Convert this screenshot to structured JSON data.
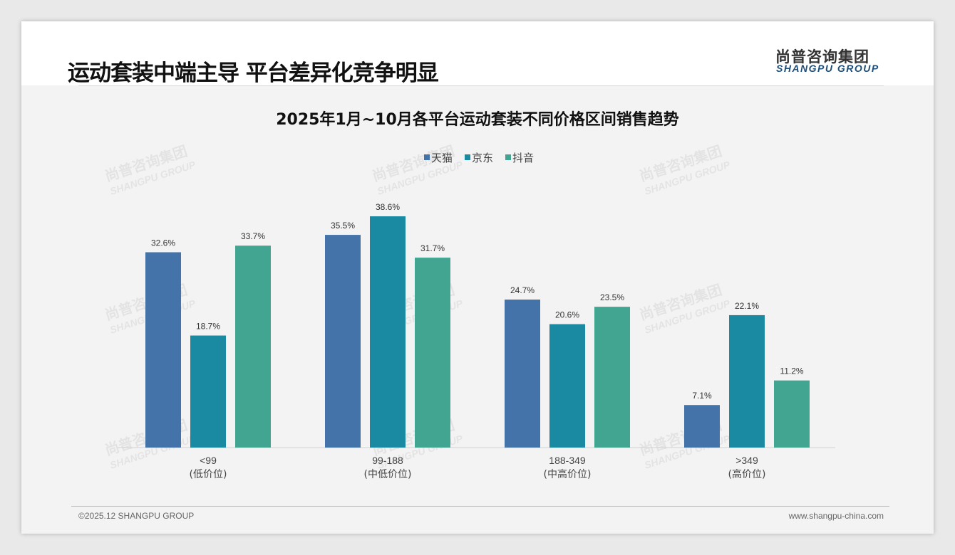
{
  "header": {
    "title": "运动套装中端主导 平台差异化竞争明显",
    "logo_cn": "尚普咨询集团",
    "logo_en": "SHANGPU GROUP"
  },
  "footer": {
    "copyright": "©2025.12 SHANGPU GROUP",
    "url": "www.shangpu-china.com"
  },
  "colors": {
    "天猫": "#4373a8",
    "京东": "#1a8aa2",
    "抖音": "#41a592"
  },
  "chart_data": {
    "type": "bar",
    "title": "2025年1月~10月各平台运动套装不同价格区间销售趋势",
    "categories": [
      [
        "<99",
        "(低价位)"
      ],
      [
        "99-188",
        "(中低价位)"
      ],
      [
        "188-349",
        "(中高价位)"
      ],
      [
        ">349",
        "(高价位)"
      ]
    ],
    "series": [
      {
        "name": "天猫",
        "values": [
          32.6,
          35.5,
          24.7,
          7.1
        ]
      },
      {
        "name": "京东",
        "values": [
          18.7,
          38.6,
          20.6,
          22.1
        ]
      },
      {
        "name": "抖音",
        "values": [
          33.7,
          31.7,
          23.5,
          11.2
        ]
      }
    ],
    "unit": "%",
    "legend": "top-center",
    "ylim": [
      0,
      40
    ],
    "grid": false
  }
}
